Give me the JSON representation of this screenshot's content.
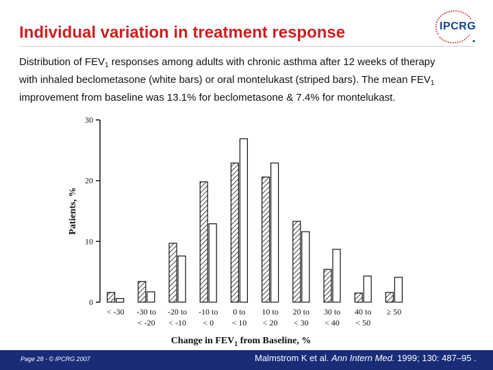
{
  "title": "Individual variation in treatment response",
  "subtitle": {
    "line1_pre": "Distribution of FEV",
    "line1_sub": "1",
    "line1_post": " responses among adults with chronic asthma after 12 weeks of therapy",
    "line2": "with inhaled beclometasone (white bars) or oral montelukast (striped bars).  The mean FEV",
    "line2_sub": "1",
    "line3": "improvement from baseline was 13.1% for beclometasone & 7.4% for montelukast."
  },
  "logo": {
    "text": "IPCRG"
  },
  "footer": {
    "page": "Page 28 - © IPCRG 2007",
    "ref_pre": "Malmstrom K et al. ",
    "ref_journal": "Ann Intern Med.",
    "ref_post": " 1999; 130: 487–95 ."
  },
  "colors": {
    "title": "#cc1f1f",
    "footer": "#1a2b78",
    "bars": "#111111"
  },
  "chart_data": {
    "type": "bar",
    "categories": [
      [
        "< -30",
        ""
      ],
      [
        "-30 to",
        "< -20"
      ],
      [
        "-20 to",
        "< -10"
      ],
      [
        "-10 to",
        "< 0"
      ],
      [
        "0 to",
        "< 10"
      ],
      [
        "10 to",
        "< 20"
      ],
      [
        "20 to",
        "< 30"
      ],
      [
        "30 to",
        "< 40"
      ],
      [
        "40 to",
        "< 50"
      ],
      [
        "≥ 50",
        ""
      ]
    ],
    "series": [
      {
        "pattern": "striped",
        "values": [
          1.6,
          3.4,
          9.7,
          19.8,
          22.9,
          20.6,
          13.3,
          5.4,
          1.5,
          1.6
        ]
      },
      {
        "pattern": "white",
        "values": [
          0.6,
          1.7,
          7.6,
          12.9,
          26.9,
          22.9,
          11.6,
          8.7,
          4.3,
          4.1
        ]
      }
    ],
    "yticks": [
      0,
      10,
      20,
      30
    ],
    "ylim": [
      0,
      30
    ],
    "xlabel_pre": "Change in FEV",
    "xlabel_sub": "1",
    "xlabel_post": " from Baseline, %",
    "ylabel": "Patients, %"
  }
}
